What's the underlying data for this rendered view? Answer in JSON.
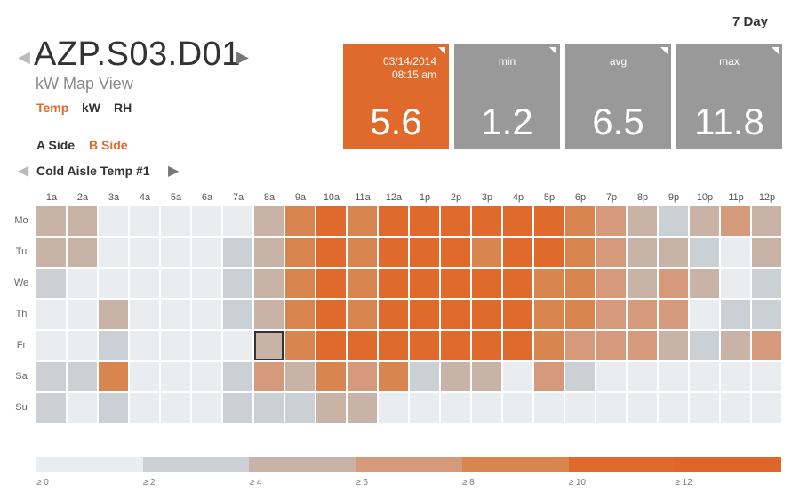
{
  "header": {
    "period": "7 Day",
    "device_title": "AZP.S03.D01",
    "view_label": "kW Map View",
    "prev_icon": "chevron-left-icon",
    "next_icon": "chevron-right-icon"
  },
  "metrics": {
    "temp": "Temp",
    "kw": "kW",
    "rh": "RH",
    "active": "Temp"
  },
  "sides": {
    "a": "A Side",
    "b": "B Side",
    "active": "B Side"
  },
  "sensor": {
    "name": "Cold Aisle Temp #1"
  },
  "stats": {
    "current": {
      "date": "03/14/2014",
      "time": "08:15 am",
      "value": "5.6",
      "color": "#e06a2b"
    },
    "min": {
      "label": "min",
      "value": "1.2",
      "color": "#999999"
    },
    "avg": {
      "label": "avg",
      "value": "6.5",
      "color": "#999999"
    },
    "max": {
      "label": "max",
      "value": "11.8",
      "color": "#999999"
    }
  },
  "heatmap": {
    "hours": [
      "1a",
      "2a",
      "3a",
      "4a",
      "5a",
      "6a",
      "7a",
      "8a",
      "9a",
      "10a",
      "11a",
      "12a",
      "1p",
      "2p",
      "3p",
      "4p",
      "5p",
      "6p",
      "7p",
      "8p",
      "9p",
      "10p",
      "11p",
      "12p"
    ],
    "days": [
      "Mo",
      "Tu",
      "We",
      "Th",
      "Fr",
      "Sa",
      "Su"
    ],
    "selected": {
      "day": "Fr",
      "hour": "8a"
    },
    "palette": [
      "#e9edf0",
      "#cbd0d4",
      "#c9b2a6",
      "#d49a7b",
      "#d98550",
      "#e06a2b",
      "#e06528"
    ],
    "levels": [
      [
        2,
        2,
        0,
        0,
        0,
        0,
        0,
        2,
        4,
        5,
        4,
        5,
        5,
        5,
        5,
        5,
        5,
        4,
        3,
        2,
        1,
        2,
        3,
        2
      ],
      [
        2,
        2,
        0,
        0,
        0,
        0,
        1,
        2,
        4,
        5,
        4,
        5,
        5,
        5,
        4,
        5,
        5,
        4,
        3,
        2,
        2,
        1,
        0,
        2
      ],
      [
        1,
        0,
        0,
        0,
        0,
        0,
        1,
        2,
        4,
        5,
        4,
        5,
        5,
        5,
        5,
        5,
        4,
        4,
        3,
        2,
        3,
        2,
        0,
        1
      ],
      [
        0,
        0,
        2,
        0,
        0,
        0,
        1,
        2,
        4,
        5,
        4,
        5,
        5,
        5,
        5,
        5,
        4,
        4,
        3,
        3,
        3,
        0,
        1,
        1
      ],
      [
        0,
        0,
        1,
        0,
        0,
        0,
        0,
        2,
        4,
        5,
        5,
        5,
        5,
        5,
        5,
        5,
        4,
        3,
        3,
        3,
        2,
        1,
        2,
        3
      ],
      [
        1,
        1,
        4,
        0,
        0,
        0,
        1,
        3,
        2,
        4,
        3,
        4,
        1,
        2,
        2,
        0,
        3,
        1,
        0,
        0,
        0,
        0,
        0,
        0
      ],
      [
        1,
        0,
        1,
        0,
        0,
        0,
        1,
        1,
        1,
        2,
        2,
        0,
        0,
        0,
        0,
        0,
        0,
        0,
        0,
        0,
        0,
        0,
        0,
        0
      ]
    ]
  },
  "legend": {
    "labels": [
      "≥ 0",
      "≥ 2",
      "≥ 4",
      "≥ 6",
      "≥ 8",
      "≥ 10",
      "≥ 12"
    ],
    "colors": [
      "#e9edf0",
      "#cbd0d4",
      "#c9b2a6",
      "#d49a7b",
      "#d98550",
      "#e06a2b",
      "#e06528"
    ]
  }
}
